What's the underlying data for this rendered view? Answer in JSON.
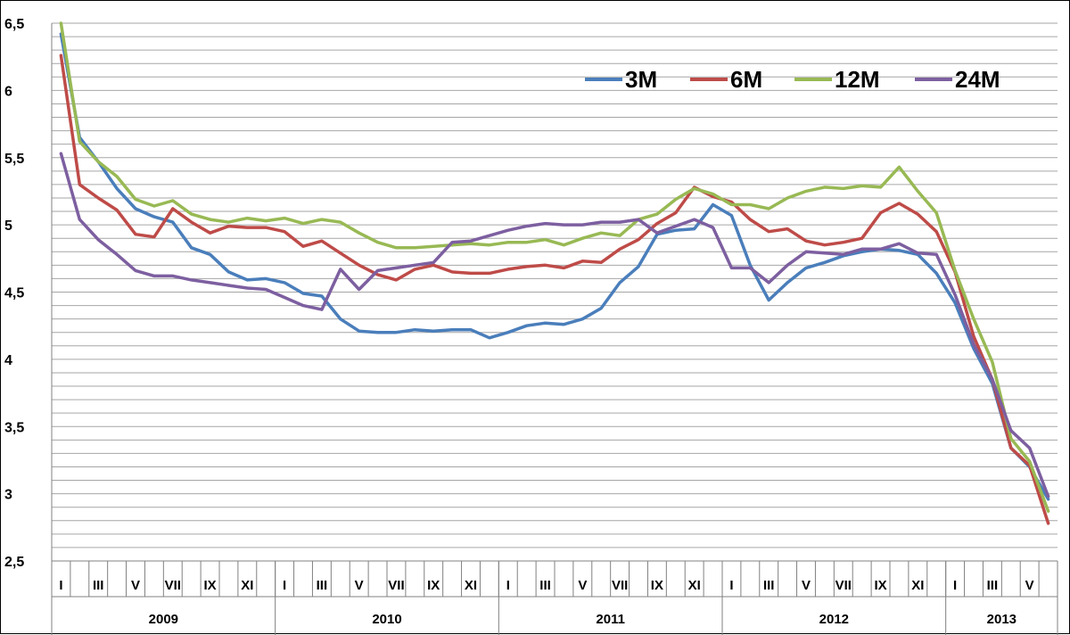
{
  "chart_data": {
    "type": "line",
    "title": "",
    "xlabel": "",
    "ylabel": "",
    "ylim": [
      2.5,
      6.5
    ],
    "yticks": [
      "2,5",
      "3",
      "3,5",
      "4",
      "4,5",
      "5",
      "5,5",
      "6",
      "6,5"
    ],
    "ytick_values": [
      2.5,
      3,
      3.5,
      4,
      4.5,
      5,
      5.5,
      6,
      6.5
    ],
    "grid": true,
    "legend_position": "top-right",
    "month_labels": [
      "I",
      "III",
      "V",
      "VII",
      "IX",
      "XI"
    ],
    "years": [
      {
        "label": "2009",
        "months": 12
      },
      {
        "label": "2010",
        "months": 12
      },
      {
        "label": "2011",
        "months": 12
      },
      {
        "label": "2012",
        "months": 12
      },
      {
        "label": "2013",
        "months": 6
      }
    ],
    "series": [
      {
        "name": "3M",
        "color": "#4a7ebb",
        "values": [
          6.42,
          5.65,
          5.47,
          5.27,
          5.12,
          5.06,
          5.02,
          4.83,
          4.78,
          4.65,
          4.59,
          4.6,
          4.57,
          4.49,
          4.47,
          4.3,
          4.21,
          4.2,
          4.2,
          4.22,
          4.21,
          4.22,
          4.22,
          4.16,
          4.2,
          4.25,
          4.27,
          4.26,
          4.3,
          4.38,
          4.57,
          4.69,
          4.93,
          4.96,
          4.97,
          5.15,
          5.07,
          4.7,
          4.44,
          4.57,
          4.68,
          4.72,
          4.77,
          4.8,
          4.82,
          4.81,
          4.78,
          4.64,
          4.42,
          4.08,
          3.82,
          3.34,
          3.2,
          2.96
        ]
      },
      {
        "name": "6M",
        "color": "#be4b48",
        "values": [
          6.26,
          5.3,
          5.2,
          5.11,
          4.93,
          4.91,
          5.12,
          5.02,
          4.94,
          4.99,
          4.98,
          4.98,
          4.95,
          4.84,
          4.88,
          4.79,
          4.7,
          4.63,
          4.59,
          4.67,
          4.7,
          4.65,
          4.64,
          4.64,
          4.67,
          4.69,
          4.7,
          4.68,
          4.73,
          4.72,
          4.82,
          4.89,
          5.01,
          5.09,
          5.28,
          5.21,
          5.17,
          5.04,
          4.95,
          4.97,
          4.88,
          4.85,
          4.87,
          4.9,
          5.09,
          5.16,
          5.08,
          4.95,
          4.65,
          4.17,
          3.85,
          3.34,
          3.21,
          2.78
        ]
      },
      {
        "name": "12M",
        "color": "#98b954",
        "values": [
          6.5,
          5.62,
          5.47,
          5.36,
          5.19,
          5.14,
          5.18,
          5.08,
          5.04,
          5.02,
          5.05,
          5.03,
          5.05,
          5.01,
          5.04,
          5.02,
          4.94,
          4.87,
          4.83,
          4.83,
          4.84,
          4.85,
          4.86,
          4.85,
          4.87,
          4.87,
          4.89,
          4.85,
          4.9,
          4.94,
          4.92,
          5.04,
          5.08,
          5.19,
          5.27,
          5.23,
          5.15,
          5.15,
          5.12,
          5.2,
          5.25,
          5.28,
          5.27,
          5.29,
          5.28,
          5.43,
          5.25,
          5.09,
          4.66,
          4.3,
          3.98,
          3.41,
          3.24,
          2.87
        ]
      },
      {
        "name": "24M",
        "color": "#7d5fa0",
        "values": [
          5.53,
          5.04,
          4.89,
          4.78,
          4.66,
          4.62,
          4.62,
          4.59,
          4.57,
          4.55,
          4.53,
          4.52,
          4.46,
          4.4,
          4.37,
          4.67,
          4.52,
          4.66,
          4.68,
          4.7,
          4.72,
          4.87,
          4.88,
          4.92,
          4.96,
          4.99,
          5.01,
          5.0,
          5.0,
          5.02,
          5.02,
          5.04,
          4.94,
          4.99,
          5.04,
          4.98,
          4.68,
          4.68,
          4.57,
          4.7,
          4.8,
          4.79,
          4.78,
          4.82,
          4.82,
          4.86,
          4.79,
          4.78,
          4.48,
          4.11,
          3.85,
          3.47,
          3.34,
          2.98
        ]
      }
    ]
  }
}
